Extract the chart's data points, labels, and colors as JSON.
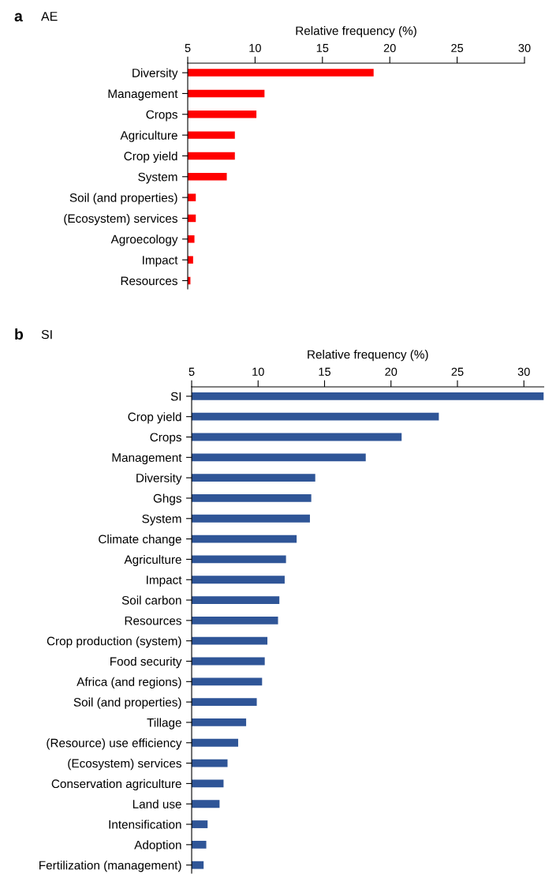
{
  "chart_data": [
    {
      "type": "bar",
      "orientation": "horizontal",
      "title": "AE",
      "annotations": [
        "a"
      ],
      "xlabel": "Relative frequency (%)",
      "color": "#ff0000",
      "xlim": [
        5,
        30
      ],
      "xticks": [
        5,
        10,
        15,
        20,
        25,
        30
      ],
      "categories": [
        "Diversity",
        "Management",
        "Crops",
        "Agriculture",
        "Crop yield",
        "System",
        "Soil (and properties)",
        "(Ecosystem) services",
        "Agroecology",
        "Impact",
        "Resources"
      ],
      "values": [
        18.8,
        10.7,
        10.1,
        8.5,
        8.5,
        7.9,
        5.6,
        5.6,
        5.5,
        5.4,
        5.2
      ]
    },
    {
      "type": "bar",
      "orientation": "horizontal",
      "title": "SI",
      "annotations": [
        "b"
      ],
      "xlabel": "Relative frequency (%)",
      "color": "#2f5597",
      "xlim": [
        5,
        31.5
      ],
      "xticks": [
        5,
        10,
        15,
        20,
        25,
        30
      ],
      "categories": [
        "SI",
        "Crop yield",
        "Crops",
        "Management",
        "Diversity",
        "Ghgs",
        "System",
        "Climate change",
        "Agriculture",
        "Impact",
        "Soil carbon",
        "Resources",
        "Crop production (system)",
        "Food security",
        "Africa (and regions)",
        "Soil (and properties)",
        "Tillage",
        "(Resource) use efficiency",
        "(Ecosystem) services",
        "Conservation agriculture",
        "Land use",
        "Intensification",
        "Adoption",
        "Fertilization (management)"
      ],
      "values": [
        31.5,
        23.6,
        20.8,
        18.1,
        14.3,
        14.0,
        13.9,
        12.9,
        12.1,
        12.0,
        11.6,
        11.5,
        10.7,
        10.5,
        10.3,
        9.9,
        9.1,
        8.5,
        7.7,
        7.4,
        7.1,
        6.2,
        6.1,
        5.9
      ]
    }
  ]
}
